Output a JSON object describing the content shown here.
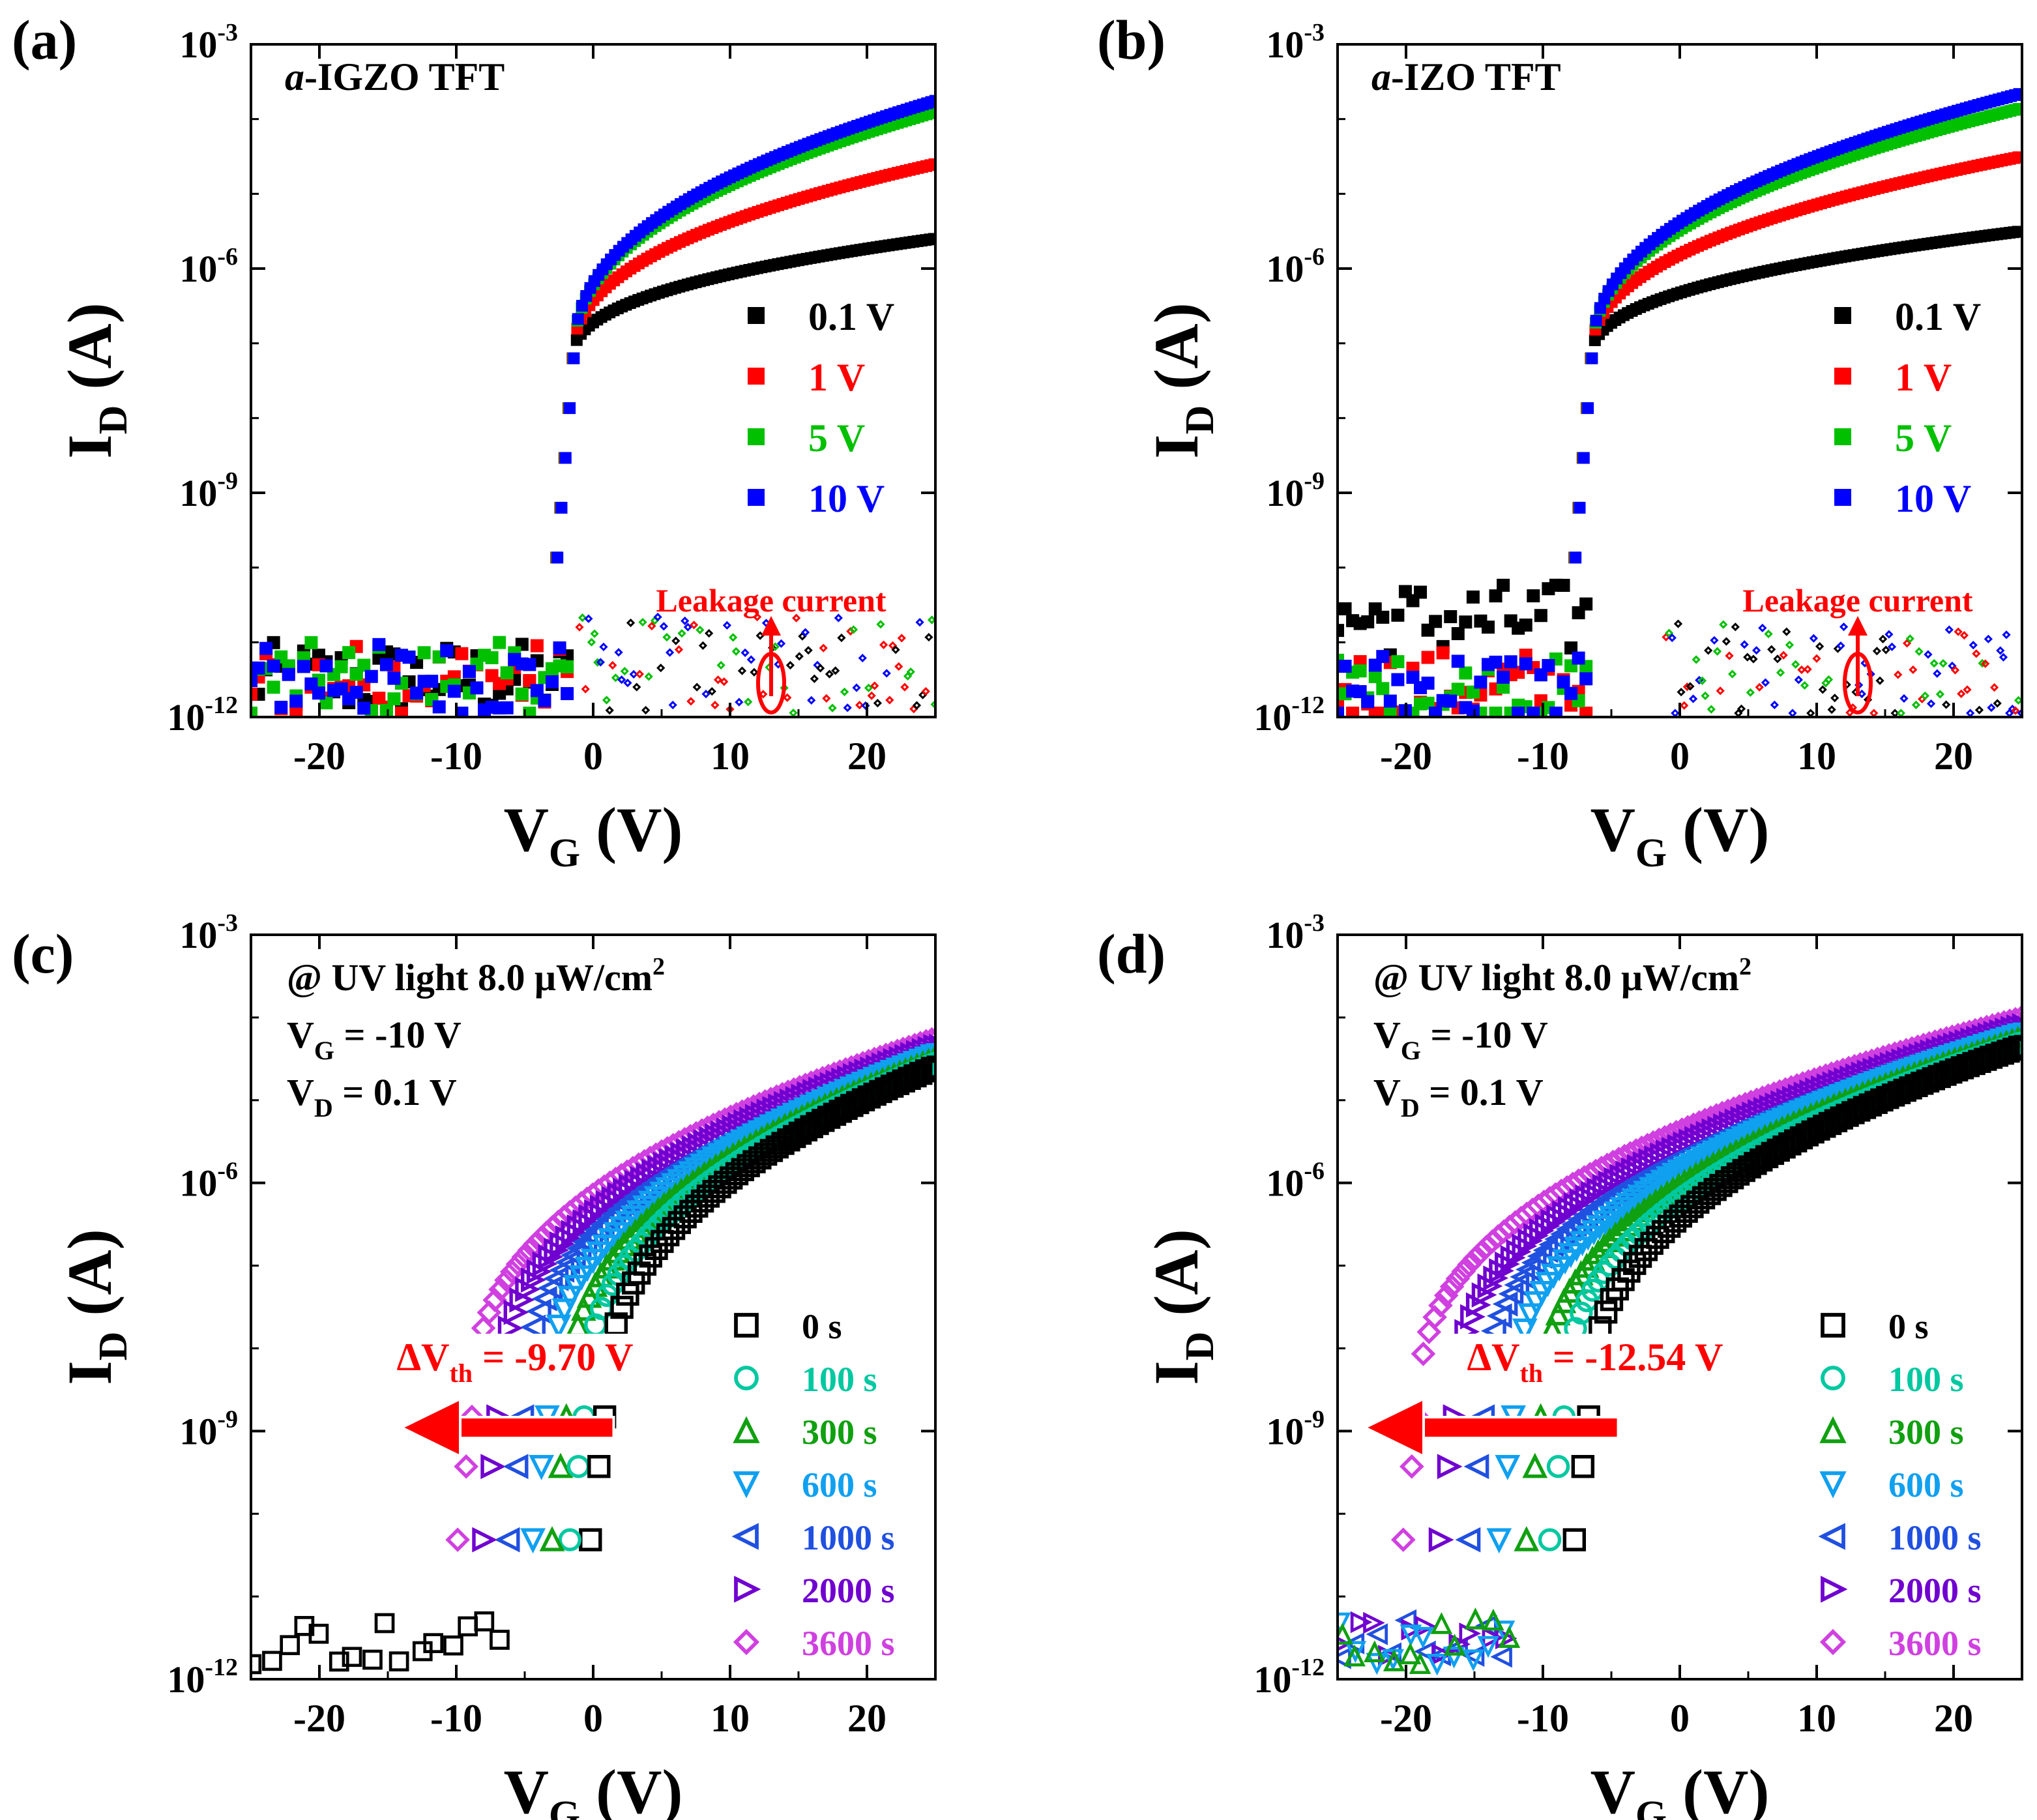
{
  "figure": {
    "colors": {
      "black": "#000000",
      "red": "#ff0000",
      "green": "#00c000",
      "blue": "#0000ff",
      "cyan": "#00c8a0",
      "dgreen": "#10a010",
      "sky": "#10a0f0",
      "royal": "#2050e0",
      "purple": "#7000d0",
      "magenta": "#d040e0"
    }
  },
  "chart_data": [
    {
      "id": "a",
      "type": "scatter",
      "panel_label": "(a)",
      "annotation_italic": "a",
      "annotation_rest": "-IGZO TFT",
      "xlabel": "V",
      "xlabel_sub": "G",
      "xlabel_unit": " (V)",
      "ylabel": "I",
      "ylabel_sub": "D",
      "ylabel_unit": " (A)",
      "x_ticks": [
        "-20",
        "-10",
        "0",
        "10",
        "20"
      ],
      "x_tick_values": [
        -20,
        -10,
        0,
        10,
        20
      ],
      "y_ticks": [
        "10-3",
        "10-6",
        "10-9",
        "10-12"
      ],
      "y_tick_exponents": [
        -3,
        -6,
        -9,
        -12
      ],
      "xlim": [
        -25,
        25
      ],
      "ylim_log10": [
        -12,
        -3
      ],
      "legend_marker": "square",
      "legend": [
        {
          "label": "0.1 V",
          "color": "black"
        },
        {
          "label": "1 V",
          "color": "red"
        },
        {
          "label": "5 V",
          "color": "green"
        },
        {
          "label": "10 V",
          "color": "blue"
        }
      ],
      "leakage_label": "Leakage current",
      "vth": -1.5,
      "series": [
        {
          "name": "0.1 V",
          "color": "black",
          "on_log10": -5.6,
          "noise_log10": -11.5
        },
        {
          "name": "1 V",
          "color": "red",
          "on_log10": -4.6,
          "noise_log10": -11.5
        },
        {
          "name": "5 V",
          "color": "green",
          "on_log10": -3.9,
          "noise_log10": -11.5
        },
        {
          "name": "10 V",
          "color": "blue",
          "on_log10": -3.75,
          "noise_log10": -11.5
        }
      ],
      "leakage_log10": -11.3
    },
    {
      "id": "b",
      "type": "scatter",
      "panel_label": "(b)",
      "annotation_italic": "a",
      "annotation_rest": "-IZO TFT",
      "xlabel": "V",
      "xlabel_sub": "G",
      "xlabel_unit": " (V)",
      "ylabel": "I",
      "ylabel_sub": "D",
      "ylabel_unit": " (A)",
      "x_ticks": [
        "-20",
        "-10",
        "0",
        "10",
        "20"
      ],
      "x_tick_values": [
        -20,
        -10,
        0,
        10,
        20
      ],
      "y_ticks": [
        "10-3",
        "10-6",
        "10-9",
        "10-12"
      ],
      "y_tick_exponents": [
        -3,
        -6,
        -9,
        -12
      ],
      "xlim": [
        -25,
        25
      ],
      "ylim_log10": [
        -12,
        -3
      ],
      "legend_marker": "square",
      "legend": [
        {
          "label": "0.1 V",
          "color": "black"
        },
        {
          "label": "1 V",
          "color": "red"
        },
        {
          "label": "5 V",
          "color": "green"
        },
        {
          "label": "10 V",
          "color": "blue"
        }
      ],
      "leakage_label": "Leakage current",
      "vth": -6.5,
      "series": [
        {
          "name": "0.1 V",
          "color": "black",
          "on_log10": -5.5,
          "noise_log10": -11.0
        },
        {
          "name": "1 V",
          "color": "red",
          "on_log10": -4.5,
          "noise_log10": -11.6
        },
        {
          "name": "5 V",
          "color": "green",
          "on_log10": -3.85,
          "noise_log10": -11.7
        },
        {
          "name": "10 V",
          "color": "blue",
          "on_log10": -3.65,
          "noise_log10": -11.6
        }
      ],
      "leakage_log10": -11.4
    },
    {
      "id": "c",
      "type": "scatter",
      "panel_label": "(c)",
      "annotation_lines": [
        {
          "main": "@ UV light 8.0 μW/cm",
          "sup": "2"
        },
        {
          "main": "V",
          "sub": "G",
          "rest": " = -10 V"
        },
        {
          "main": "V",
          "sub": "D",
          "rest": " = 0.1 V"
        }
      ],
      "xlabel": "V",
      "xlabel_sub": "G",
      "xlabel_unit": " (V)",
      "ylabel": "I",
      "ylabel_sub": "D",
      "ylabel_unit": " (A)",
      "x_ticks": [
        "-20",
        "-10",
        "0",
        "10",
        "20"
      ],
      "x_tick_values": [
        -20,
        -10,
        0,
        10,
        20
      ],
      "y_ticks": [
        "10-3",
        "10-6",
        "10-9",
        "10-12"
      ],
      "y_tick_exponents": [
        -3,
        -6,
        -9,
        -12
      ],
      "xlim": [
        -25,
        25
      ],
      "ylim_log10": [
        -12,
        -3
      ],
      "legend_marker": "open",
      "legend": [
        {
          "label": "0 s",
          "color": "black",
          "marker": "square"
        },
        {
          "label": "100 s",
          "color": "cyan",
          "marker": "circle"
        },
        {
          "label": "300 s",
          "color": "dgreen",
          "marker": "triangle-up"
        },
        {
          "label": "600 s",
          "color": "sky",
          "marker": "triangle-down"
        },
        {
          "label": "1000 s",
          "color": "royal",
          "marker": "triangle-left"
        },
        {
          "label": "2000 s",
          "color": "purple",
          "marker": "triangle-right"
        },
        {
          "label": "3600 s",
          "color": "magenta",
          "marker": "diamond"
        }
      ],
      "delta_vth_label": "ΔV",
      "delta_vth_sub": "th",
      "delta_vth_value": " = -9.70 V",
      "series": [
        {
          "name": "0 s",
          "color": "black",
          "marker": "square",
          "vth": 1.0,
          "on_log10": -4.6
        },
        {
          "name": "100 s",
          "color": "cyan",
          "marker": "circle",
          "vth": -0.5,
          "on_log10": -4.55
        },
        {
          "name": "300 s",
          "color": "dgreen",
          "marker": "triangle-up",
          "vth": -1.8,
          "on_log10": -4.5
        },
        {
          "name": "600 s",
          "color": "sky",
          "marker": "triangle-down",
          "vth": -3.2,
          "on_log10": -4.45
        },
        {
          "name": "1000 s",
          "color": "royal",
          "marker": "triangle-left",
          "vth": -5.0,
          "on_log10": -4.4
        },
        {
          "name": "2000 s",
          "color": "purple",
          "marker": "triangle-right",
          "vth": -6.8,
          "on_log10": -4.35
        },
        {
          "name": "3600 s",
          "color": "magenta",
          "marker": "diamond",
          "vth": -8.7,
          "on_log10": -4.25
        }
      ]
    },
    {
      "id": "d",
      "type": "scatter",
      "panel_label": "(d)",
      "annotation_lines": [
        {
          "main": "@ UV light 8.0 μW/cm",
          "sup": "2"
        },
        {
          "main": "V",
          "sub": "G",
          "rest": " = -10 V"
        },
        {
          "main": "V",
          "sub": "D",
          "rest": " = 0.1 V"
        }
      ],
      "xlabel": "V",
      "xlabel_sub": "G",
      "xlabel_unit": " (V)",
      "ylabel": "I",
      "ylabel_sub": "D",
      "ylabel_unit": " (A)",
      "x_ticks": [
        "-20",
        "-10",
        "0",
        "10",
        "20"
      ],
      "x_tick_values": [
        -20,
        -10,
        0,
        10,
        20
      ],
      "y_ticks": [
        "10-3",
        "10-6",
        "10-9",
        "10-12"
      ],
      "y_tick_exponents": [
        -3,
        -6,
        -9,
        -12
      ],
      "xlim": [
        -25,
        25
      ],
      "ylim_log10": [
        -12,
        -3
      ],
      "legend_marker": "open",
      "legend": [
        {
          "label": "0 s",
          "color": "black",
          "marker": "square"
        },
        {
          "label": "100 s",
          "color": "cyan",
          "marker": "circle"
        },
        {
          "label": "300 s",
          "color": "dgreen",
          "marker": "triangle-up"
        },
        {
          "label": "600 s",
          "color": "sky",
          "marker": "triangle-down"
        },
        {
          "label": "1000 s",
          "color": "royal",
          "marker": "triangle-left"
        },
        {
          "label": "2000 s",
          "color": "purple",
          "marker": "triangle-right"
        },
        {
          "label": "3600 s",
          "color": "magenta",
          "marker": "diamond"
        }
      ],
      "delta_vth_label": "ΔV",
      "delta_vth_sub": "th",
      "delta_vth_value": " = -12.54 V",
      "series": [
        {
          "name": "0 s",
          "color": "black",
          "marker": "square",
          "vth": -6.5,
          "on_log10": -4.35
        },
        {
          "name": "100 s",
          "color": "cyan",
          "marker": "circle",
          "vth": -8.3,
          "on_log10": -4.3
        },
        {
          "name": "300 s",
          "color": "dgreen",
          "marker": "triangle-up",
          "vth": -10.0,
          "on_log10": -4.25
        },
        {
          "name": "600 s",
          "color": "sky",
          "marker": "triangle-down",
          "vth": -12.0,
          "on_log10": -4.2
        },
        {
          "name": "1000 s",
          "color": "royal",
          "marker": "triangle-left",
          "vth": -14.2,
          "on_log10": -4.15
        },
        {
          "name": "2000 s",
          "color": "purple",
          "marker": "triangle-right",
          "vth": -16.3,
          "on_log10": -4.1
        },
        {
          "name": "3600 s",
          "color": "magenta",
          "marker": "diamond",
          "vth": -19.0,
          "on_log10": -4.0
        }
      ]
    }
  ]
}
